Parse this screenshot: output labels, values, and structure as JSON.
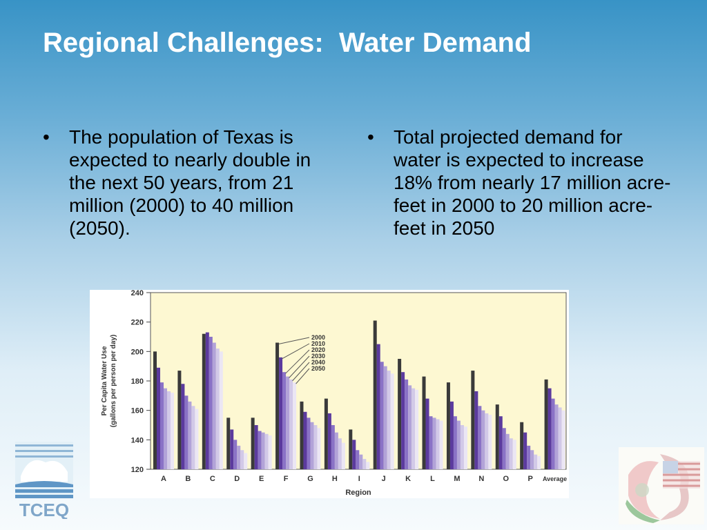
{
  "slide": {
    "title": "Regional Challenges:  Water Demand",
    "bullets_left": [
      "The population of Texas is expected to nearly double in the next 50 years, from 21 million (2000) to 40 million (2050)."
    ],
    "bullets_right": [
      "Total projected demand for water is expected to increase 18% from nearly 17 million acre-feet in 2000 to 20 million acre-feet in 2050"
    ],
    "bullet_symbol": "•"
  },
  "logos": {
    "left_text": "TCEQ"
  },
  "colors": {
    "plot_background": "#fdf8d2",
    "series": [
      "#3a3a3a",
      "#5b3a9e",
      "#8a72c6",
      "#b2a3d8",
      "#d2c9e8",
      "#ebe6f4"
    ]
  },
  "chart_data": {
    "type": "bar",
    "title": "",
    "xlabel": "Region",
    "ylabel": "Per Capita Water Use\n(gallons per person per day)",
    "ylim": [
      120,
      240
    ],
    "yticks": [
      120,
      140,
      160,
      180,
      200,
      220,
      240
    ],
    "grid": false,
    "legend": "annotated lines pointing to region F bars",
    "categories": [
      "A",
      "B",
      "C",
      "D",
      "E",
      "F",
      "G",
      "H",
      "I",
      "J",
      "K",
      "L",
      "M",
      "N",
      "O",
      "P",
      "Average"
    ],
    "series": [
      {
        "name": "2000",
        "values": [
          200,
          187,
          212,
          155,
          155,
          206,
          166,
          168,
          147,
          221,
          195,
          183,
          179,
          187,
          164,
          152,
          181
        ]
      },
      {
        "name": "2010",
        "values": [
          189,
          178,
          213,
          147,
          150,
          196,
          159,
          158,
          140,
          205,
          186,
          168,
          166,
          173,
          156,
          145,
          175
        ]
      },
      {
        "name": "2020",
        "values": [
          179,
          170,
          210,
          140,
          146,
          186,
          155,
          150,
          133,
          193,
          181,
          156,
          156,
          163,
          148,
          136,
          168
        ]
      },
      {
        "name": "2030",
        "values": [
          175,
          166,
          206,
          136,
          145,
          183,
          152,
          145,
          130,
          190,
          177,
          155,
          153,
          160,
          144,
          133,
          164
        ]
      },
      {
        "name": "2040",
        "values": [
          173,
          163,
          202,
          133,
          144,
          181,
          150,
          141,
          127,
          187,
          175,
          154,
          150,
          158,
          141,
          130,
          162
        ]
      },
      {
        "name": "2050",
        "values": [
          172,
          161,
          200,
          131,
          143,
          179,
          148,
          138,
          125,
          185,
          174,
          153,
          149,
          157,
          140,
          129,
          160
        ]
      }
    ]
  }
}
